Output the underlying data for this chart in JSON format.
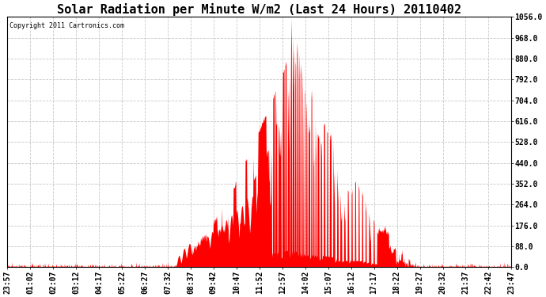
{
  "title": "Solar Radiation per Minute W/m2 (Last 24 Hours) 20110402",
  "copyright_text": "Copyright 2011 Cartronics.com",
  "bar_color": "#ff0000",
  "background_color": "#ffffff",
  "plot_bg_color": "#ffffff",
  "ymin": 0.0,
  "ymax": 1056.0,
  "yticks": [
    0.0,
    88.0,
    176.0,
    264.0,
    352.0,
    440.0,
    528.0,
    616.0,
    704.0,
    792.0,
    880.0,
    968.0,
    1056.0
  ],
  "xtick_labels": [
    "23:57",
    "01:02",
    "02:07",
    "03:12",
    "04:17",
    "05:22",
    "06:27",
    "07:32",
    "08:37",
    "09:42",
    "10:47",
    "11:52",
    "12:57",
    "14:02",
    "15:07",
    "16:12",
    "17:17",
    "18:22",
    "19:27",
    "20:32",
    "21:37",
    "22:42",
    "23:47"
  ],
  "grid_color": "#c8c8c8",
  "title_fontsize": 11,
  "tick_fontsize": 7,
  "figwidth": 6.9,
  "figheight": 3.75,
  "dpi": 100
}
